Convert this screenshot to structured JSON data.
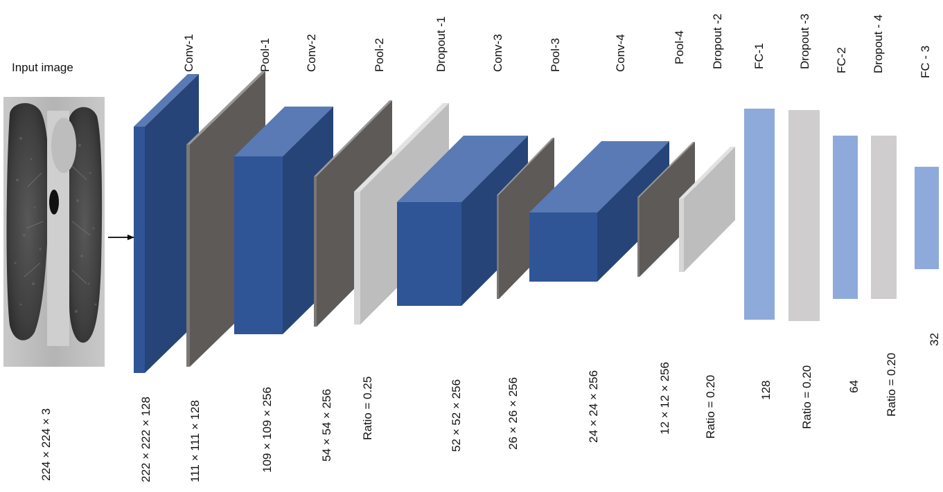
{
  "diagram": {
    "input": {
      "title": "Input image",
      "dims": "224 × 224 × 3"
    },
    "layers": [
      {
        "name": "Conv-1",
        "dims": "222 × 222 × 128",
        "kind": "conv"
      },
      {
        "name": "Pool-1",
        "dims": "111 × 111 × 128",
        "kind": "pool"
      },
      {
        "name": "Conv-2",
        "dims": "109 × 109 × 256",
        "kind": "conv"
      },
      {
        "name": "Pool-2",
        "dims": "54 × 54 × 256",
        "kind": "pool"
      },
      {
        "name": "Dropout -1",
        "dims": "Ratio = 0.25",
        "kind": "dropout"
      },
      {
        "name": "Conv-3",
        "dims": "52 × 52 × 256",
        "kind": "conv"
      },
      {
        "name": "Pool-3",
        "dims": "26 × 26 × 256",
        "kind": "pool"
      },
      {
        "name": "Conv-4",
        "dims": "24 × 24 × 256",
        "kind": "conv"
      },
      {
        "name": "Pool-4",
        "dims": "12 × 12 × 256",
        "kind": "pool"
      },
      {
        "name": "Dropout -2",
        "dims": "Ratio = 0.20",
        "kind": "dropout"
      },
      {
        "name": "FC-1",
        "dims": "128",
        "kind": "fc"
      },
      {
        "name": "Dropout -3",
        "dims": "Ratio = 0.20",
        "kind": "fc-dropout"
      },
      {
        "name": "FC-2",
        "dims": "64",
        "kind": "fc"
      },
      {
        "name": "Dropout - 4",
        "dims": "Ratio = 0.20",
        "kind": "fc-dropout"
      },
      {
        "name": "FC - 3",
        "dims": "32",
        "kind": "fc"
      }
    ],
    "colors": {
      "conv_front": "#2f5597",
      "conv_top": "#5a7ab5",
      "conv_side": "#264478",
      "pool_front": "#5d5a58",
      "pool_edge": "#9a9896",
      "dropout_front": "#bdbdbd",
      "dropout_edge": "#e2e2e2",
      "fc": "#8eaadb",
      "fc_dropout": "#cfcdcd",
      "arrow": "#000000"
    }
  }
}
